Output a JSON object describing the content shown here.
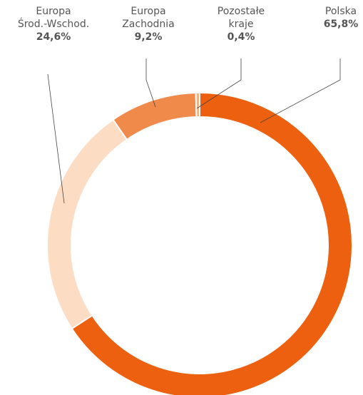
{
  "chart_data": {
    "type": "donut",
    "categories": [
      "Polska",
      "Europa Środ.-Wschod.",
      "Europa Zachodnia",
      "Pozostałe kraje"
    ],
    "values": [
      65.8,
      24.6,
      9.2,
      0.4
    ],
    "value_labels": [
      "65,8%",
      "24,6%",
      "9,2%",
      "0,4%"
    ],
    "colors": [
      "#ec600f",
      "#fddcc4",
      "#f08a4b",
      "#f5b080"
    ]
  }
}
